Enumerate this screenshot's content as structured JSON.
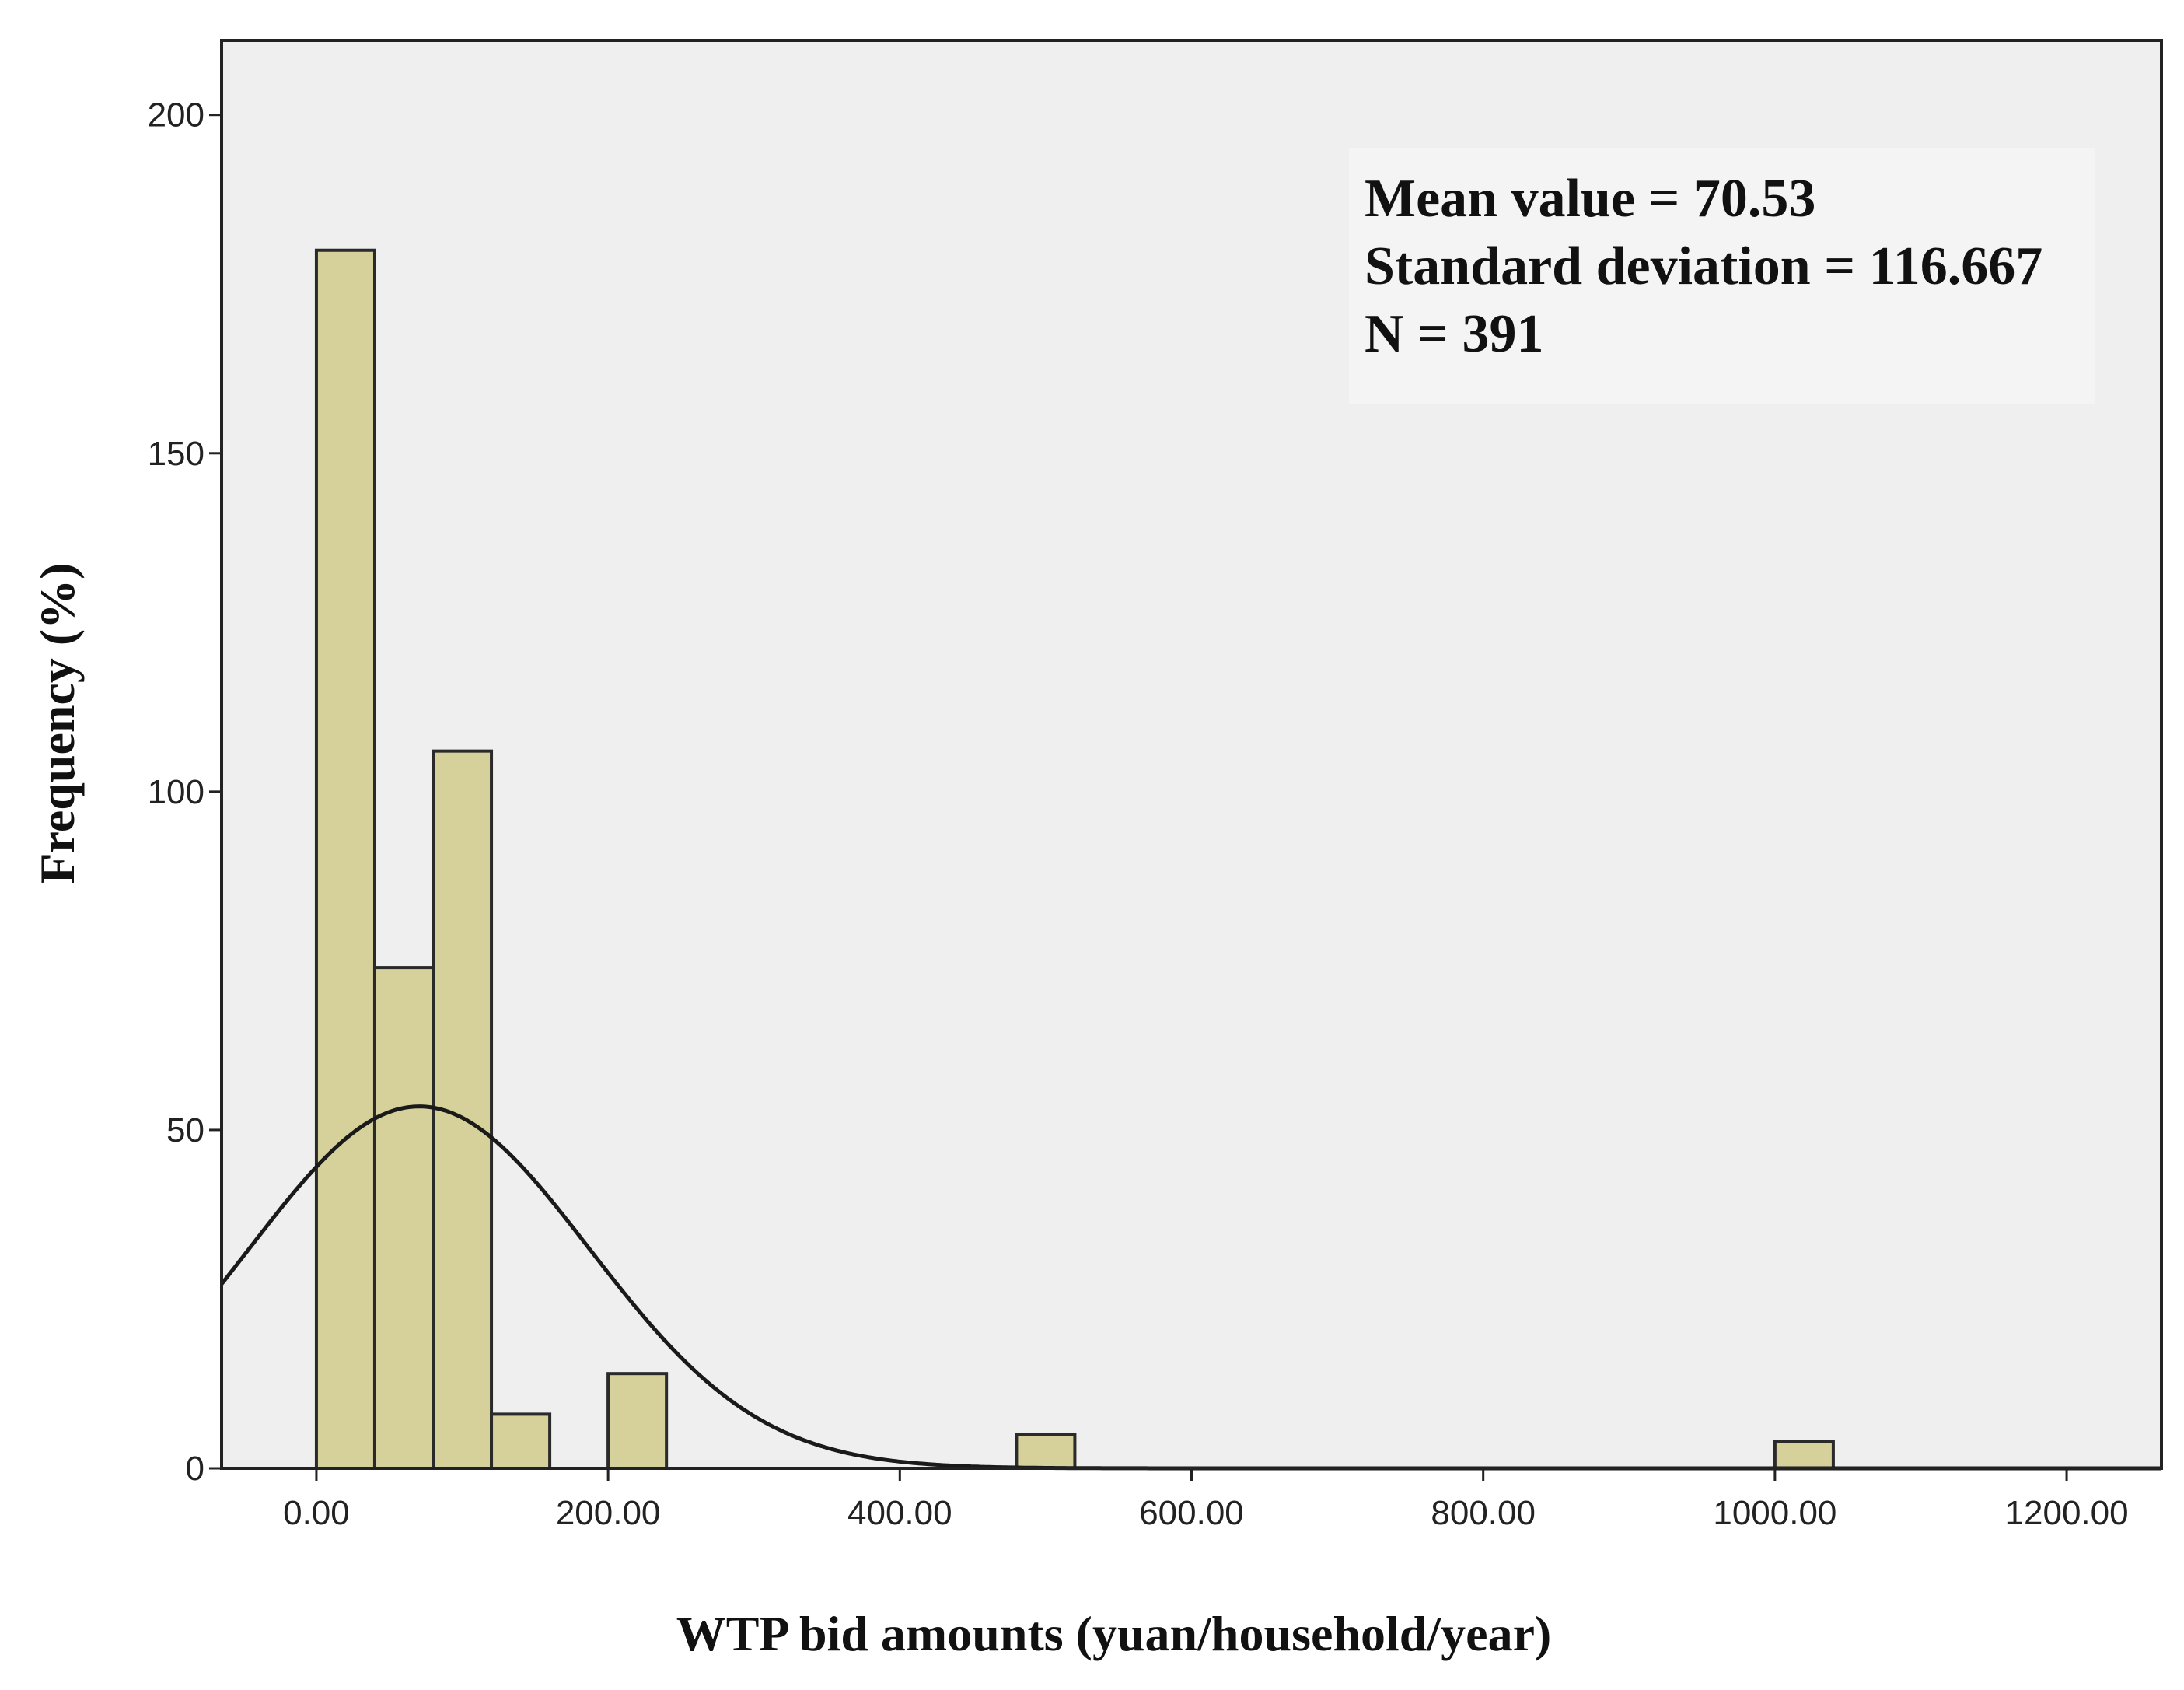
{
  "chart_data": {
    "type": "bar",
    "subtype": "histogram",
    "xlabel": "WTP bid amounts (yuan/household/year)",
    "ylabel": "Frequency (%)",
    "xlim": [
      -65,
      1265
    ],
    "ylim": [
      0,
      211
    ],
    "x_ticks": [
      {
        "value": 0,
        "label": "0.00"
      },
      {
        "value": 200,
        "label": "200.00"
      },
      {
        "value": 400,
        "label": "400.00"
      },
      {
        "value": 600,
        "label": "600.00"
      },
      {
        "value": 800,
        "label": "800.00"
      },
      {
        "value": 1000,
        "label": "1000.00"
      },
      {
        "value": 1200,
        "label": "1200.00"
      }
    ],
    "y_ticks": [
      {
        "value": 0,
        "label": "0"
      },
      {
        "value": 50,
        "label": "50"
      },
      {
        "value": 100,
        "label": "100"
      },
      {
        "value": 150,
        "label": "150"
      },
      {
        "value": 200,
        "label": "200"
      }
    ],
    "bin_width": 40,
    "bins": [
      {
        "start": 0,
        "end": 40,
        "value": 180
      },
      {
        "start": 40,
        "end": 80,
        "value": 74
      },
      {
        "start": 80,
        "end": 120,
        "value": 106
      },
      {
        "start": 120,
        "end": 160,
        "value": 8
      },
      {
        "start": 200,
        "end": 240,
        "value": 14
      },
      {
        "start": 480,
        "end": 520,
        "value": 5
      },
      {
        "start": 1000,
        "end": 1040,
        "value": 4
      }
    ],
    "normal_curve": {
      "mean": 70.53,
      "sd": 116.667,
      "n": 391
    },
    "stats": [
      "Mean value = 70.53",
      "Standard deviation = 116.667",
      "N = 391"
    ],
    "colors": {
      "bar_fill": "#d6d09a",
      "bar_stroke": "#2a2a2a",
      "plot_bg": "#efefef",
      "curve": "#1a1a1a",
      "axis": "#222222"
    }
  }
}
